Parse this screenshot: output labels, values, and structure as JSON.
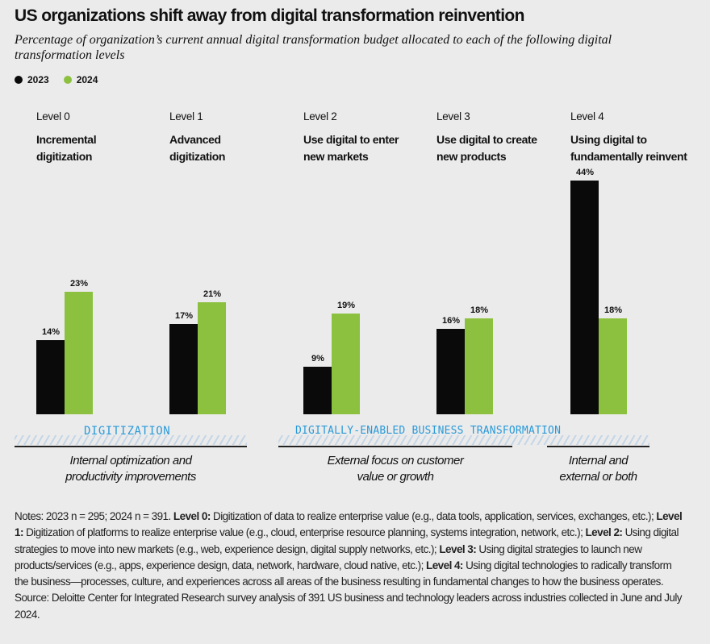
{
  "title": "US organizations shift away from digital transformation reinvention",
  "subtitle": "Percentage of organization’s current annual digital transformation budget allocated to each of the following digital transformation levels",
  "colors": {
    "2023": "#0a0a0a",
    "2024": "#8cc13f",
    "band_text": "#2a9ad8"
  },
  "chart_data": {
    "type": "bar",
    "categories": [
      "Level 0",
      "Level 1",
      "Level 2",
      "Level 3",
      "Level 4"
    ],
    "category_names": [
      "Incremental digitization",
      "Advanced digitization",
      "Use digital to enter new markets",
      "Use digital to create new products",
      "Using digital to fundamentally reinvent"
    ],
    "series": [
      {
        "name": "2023",
        "values": [
          14,
          17,
          9,
          16,
          44
        ],
        "labels": [
          "14%",
          "17%",
          "9%",
          "16%",
          "44%"
        ]
      },
      {
        "name": "2024",
        "values": [
          23,
          21,
          19,
          18,
          18
        ],
        "labels": [
          "23%",
          "21%",
          "19%",
          "18%",
          "18%"
        ]
      }
    ],
    "ylim": [
      0,
      44
    ],
    "legend": "top-left",
    "grid": false,
    "groups": [
      {
        "label": "DIGITIZATION",
        "desc": [
          "Internal optimization and",
          "productivity improvements"
        ]
      },
      {
        "label": "DIGITALLY-ENABLED BUSINESS TRANSFORMATION",
        "desc": [
          "External focus on customer",
          "value or growth"
        ]
      },
      {
        "desc": [
          "Internal and",
          "external or both"
        ]
      }
    ]
  },
  "notes": [
    {
      "b": false,
      "t": "Notes: 2023 n = 295; 2024 n = 391. "
    },
    {
      "b": true,
      "t": "Level 0:"
    },
    {
      "b": false,
      "t": " Digitization of data to realize enterprise value (e.g., data tools, application, services, exchanges, etc.); "
    },
    {
      "b": true,
      "t": "Level 1:"
    },
    {
      "b": false,
      "t": " Digitization of platforms to realize enterprise value (e.g., cloud, enterprise resource planning, systems integration, network, etc.); "
    },
    {
      "b": true,
      "t": "Level 2:"
    },
    {
      "b": false,
      "t": " Using digital strategies to move into new markets (e.g., web, experience design, digital supply networks, etc.); "
    },
    {
      "b": true,
      "t": "Level 3:"
    },
    {
      "b": false,
      "t": " Using digital strategies to launch new products/services (e.g., apps, experience design, data, network, hardware, cloud native, etc.); "
    },
    {
      "b": true,
      "t": "Level 4:"
    },
    {
      "b": false,
      "t": " Using digital technologies to radically transform the business—processes, culture, and experiences across all areas of the business resulting in fundamental changes to how the business operates."
    }
  ],
  "source": "Source: Deloitte Center for Integrated Research survey analysis of 391 US business and technology leaders across industries collected in June and July 2024."
}
